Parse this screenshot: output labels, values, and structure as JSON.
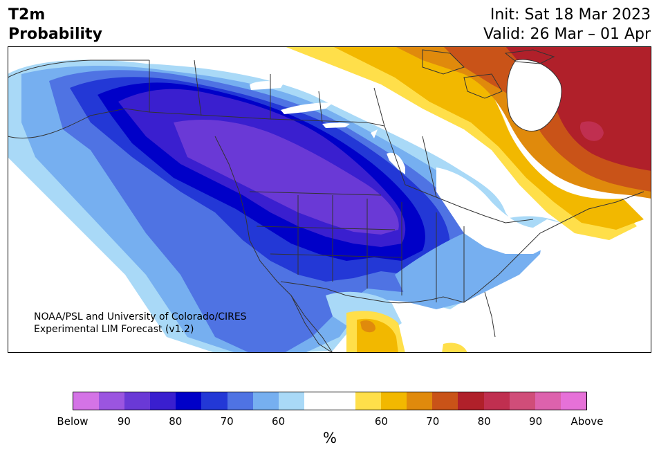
{
  "header": {
    "variable_line1": "T2m",
    "variable_line2": "Probability",
    "init": "Init: Sat 18 Mar 2023",
    "valid": "Valid: 26 Mar – 01 Apr"
  },
  "credit": {
    "line1": "NOAA/PSL and University of Colorado/CIRES",
    "line2": "Experimental LIM Forecast (v1.2)"
  },
  "colorbar": {
    "unit": "%",
    "ticks": [
      "Below",
      "90",
      "80",
      "70",
      "60",
      "60",
      "70",
      "80",
      "90",
      "Above"
    ],
    "colors": [
      "#d473e6",
      "#9b55e0",
      "#6a39d6",
      "#3a1fcf",
      "#0000c8",
      "#2338d6",
      "#4f73e3",
      "#76aff0",
      "#a9d9f7",
      "#ffffff",
      "#ffffff",
      "#ffdf4a",
      "#f2b800",
      "#e08a0c",
      "#c95318",
      "#b0202a",
      "#c02f50",
      "#d04d79",
      "#dd62ad",
      "#e671d8"
    ]
  },
  "map": {
    "region": "North America",
    "colors": {
      "deep_purple": "#6a39d6",
      "indigo": "#3a1fcf",
      "dark_blue": "#0000c8",
      "blue": "#2338d6",
      "mid_blue": "#4f73e3",
      "light_blue": "#76aff0",
      "pale_blue": "#a9d9f7",
      "yellow": "#ffdf4a",
      "gold": "#f2b800",
      "orange": "#e08a0c",
      "dark_orange": "#c95318",
      "red": "#b0202a",
      "pink": "#c02f50",
      "border": "#333333"
    }
  }
}
